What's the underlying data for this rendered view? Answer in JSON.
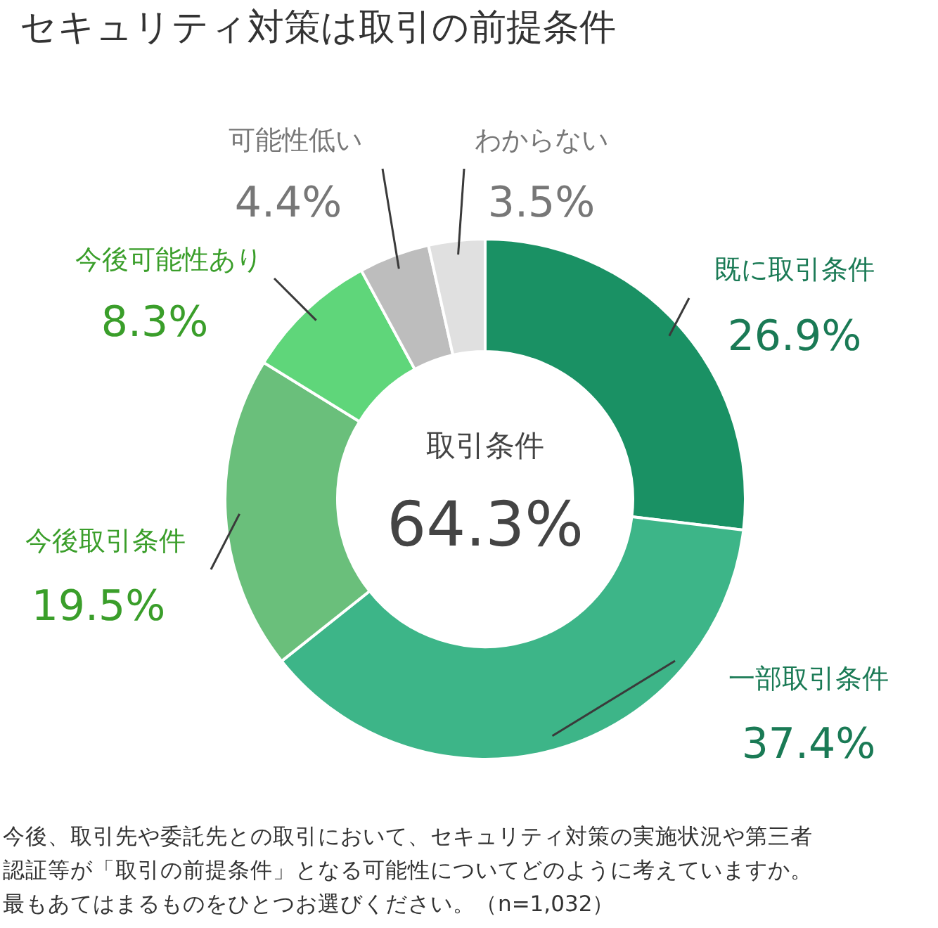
{
  "chart_data": {
    "type": "donut",
    "title": "セキュリティ対策は取引の前提条件",
    "categories": [
      "既に取引条件",
      "一部取引条件",
      "今後取引条件",
      "今後可能性あり",
      "可能性低い",
      "わからない"
    ],
    "values": [
      26.9,
      37.4,
      19.5,
      8.3,
      4.4,
      3.5
    ],
    "value_labels": [
      "26.9%",
      "37.4%",
      "19.5%",
      "8.3%",
      "4.4%",
      "3.5%"
    ],
    "colors": [
      "#1a9164",
      "#3db588",
      "#6abf7b",
      "#5fd67a",
      "#bdbdbd",
      "#e0e0e0"
    ],
    "annotations": [
      "取引条件",
      "64.3%",
      "今後、取引先や委託先との取引において、セキュリティ対策の実施状況や第三者認証等が「取引の前提条件」となる可能性についてどのように考えていますか。最もあてはまるものをひとつお選びください。（n=1,032）"
    ]
  }
}
